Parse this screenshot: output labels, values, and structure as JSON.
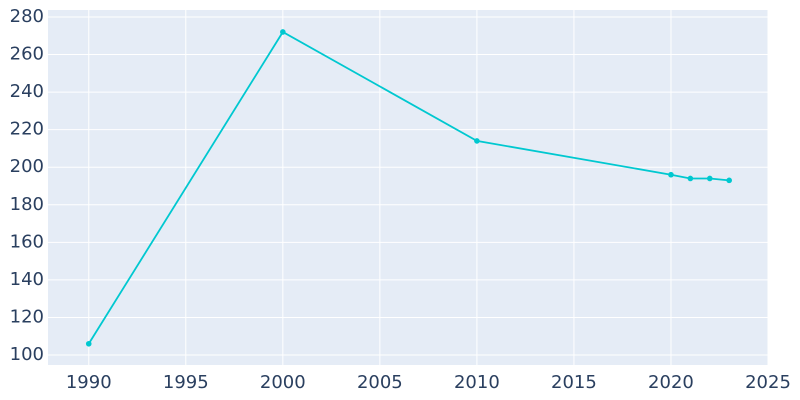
{
  "chart_data": {
    "type": "line",
    "x": [
      1990,
      2000,
      2010,
      2020,
      2021,
      2022,
      2023
    ],
    "series": [
      {
        "color": "#00c8d0",
        "values": [
          106,
          272,
          214,
          196,
          194,
          194,
          193
        ]
      }
    ],
    "xlim": [
      1987.9,
      2025
    ],
    "xticks": [
      1990,
      1995,
      2000,
      2005,
      2010,
      2015,
      2020,
      2025
    ],
    "ylim": [
      94.7,
      283.7
    ],
    "yticks": [
      100,
      120,
      140,
      160,
      180,
      200,
      220,
      240,
      260,
      280
    ],
    "grid": true,
    "background": "#e5ecf6"
  }
}
